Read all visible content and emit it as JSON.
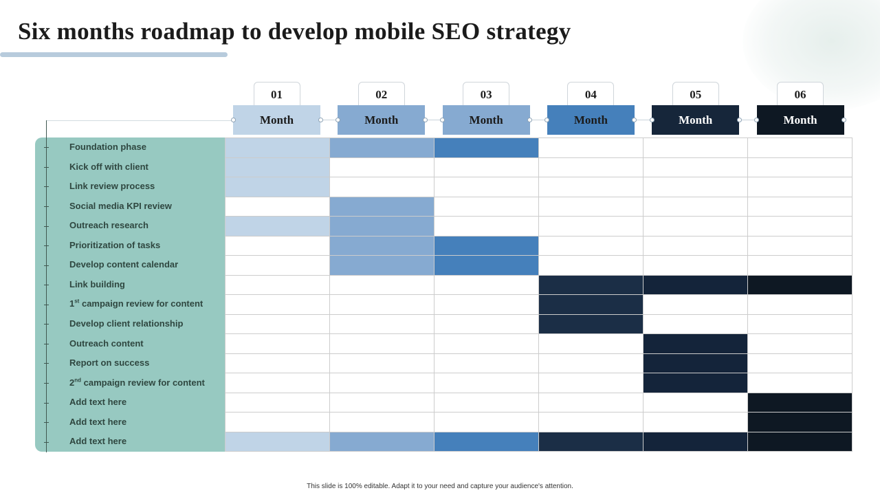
{
  "title": "Six months roadmap to develop mobile SEO strategy",
  "footer": "This slide is 100% editable. Adapt it to your need and capture your audience's attention.",
  "months": [
    {
      "num": "01",
      "label": "Month",
      "color": "#c0d4e7",
      "text_color": "#1b1b1b"
    },
    {
      "num": "02",
      "label": "Month",
      "color": "#86aad1",
      "text_color": "#1b1b1b"
    },
    {
      "num": "03",
      "label": "Month",
      "color": "#86aad1",
      "text_color": "#1b1b1b"
    },
    {
      "num": "04",
      "label": "Month",
      "color": "#4580bb",
      "text_color": "#1b1b1b"
    },
    {
      "num": "05",
      "label": "Month",
      "color": "#16263a",
      "text_color": "#ffffff"
    },
    {
      "num": "06",
      "label": "Month",
      "color": "#0e1823",
      "text_color": "#ffffff"
    }
  ],
  "cell_colors": [
    "#c0d4e7",
    "#86aad1",
    "#4580bb",
    "#1b2e46",
    "#14243a",
    "#0e1823"
  ],
  "tasks": [
    {
      "label": "Foundation phase",
      "months": [
        1,
        2,
        3
      ]
    },
    {
      "label": "Kick off with client",
      "months": [
        1
      ]
    },
    {
      "label": "Link review process",
      "months": [
        1
      ]
    },
    {
      "label": "Social media KPI review",
      "months": [
        2
      ]
    },
    {
      "label": "Outreach research",
      "months": [
        1,
        2
      ]
    },
    {
      "label": "Prioritization of tasks",
      "months": [
        2,
        3
      ]
    },
    {
      "label": "Develop content calendar",
      "months": [
        2,
        3
      ]
    },
    {
      "label": "Link building",
      "months": [
        4,
        5,
        6
      ]
    },
    {
      "label": "1",
      "sup": "st",
      "rest": " campaign review for content",
      "months": [
        4
      ]
    },
    {
      "label": "Develop client relationship",
      "months": [
        4
      ]
    },
    {
      "label": "Outreach content",
      "months": [
        5
      ]
    },
    {
      "label": "Report on success",
      "months": [
        5
      ]
    },
    {
      "label": "2",
      "sup": "nd",
      "rest": " campaign review for content",
      "months": [
        5
      ]
    },
    {
      "label": "Add text here",
      "months": [
        6
      ]
    },
    {
      "label": "Add text here",
      "months": [
        6
      ]
    },
    {
      "label": "Add text here",
      "months": [
        1,
        2,
        3,
        4,
        5,
        6
      ]
    }
  ]
}
